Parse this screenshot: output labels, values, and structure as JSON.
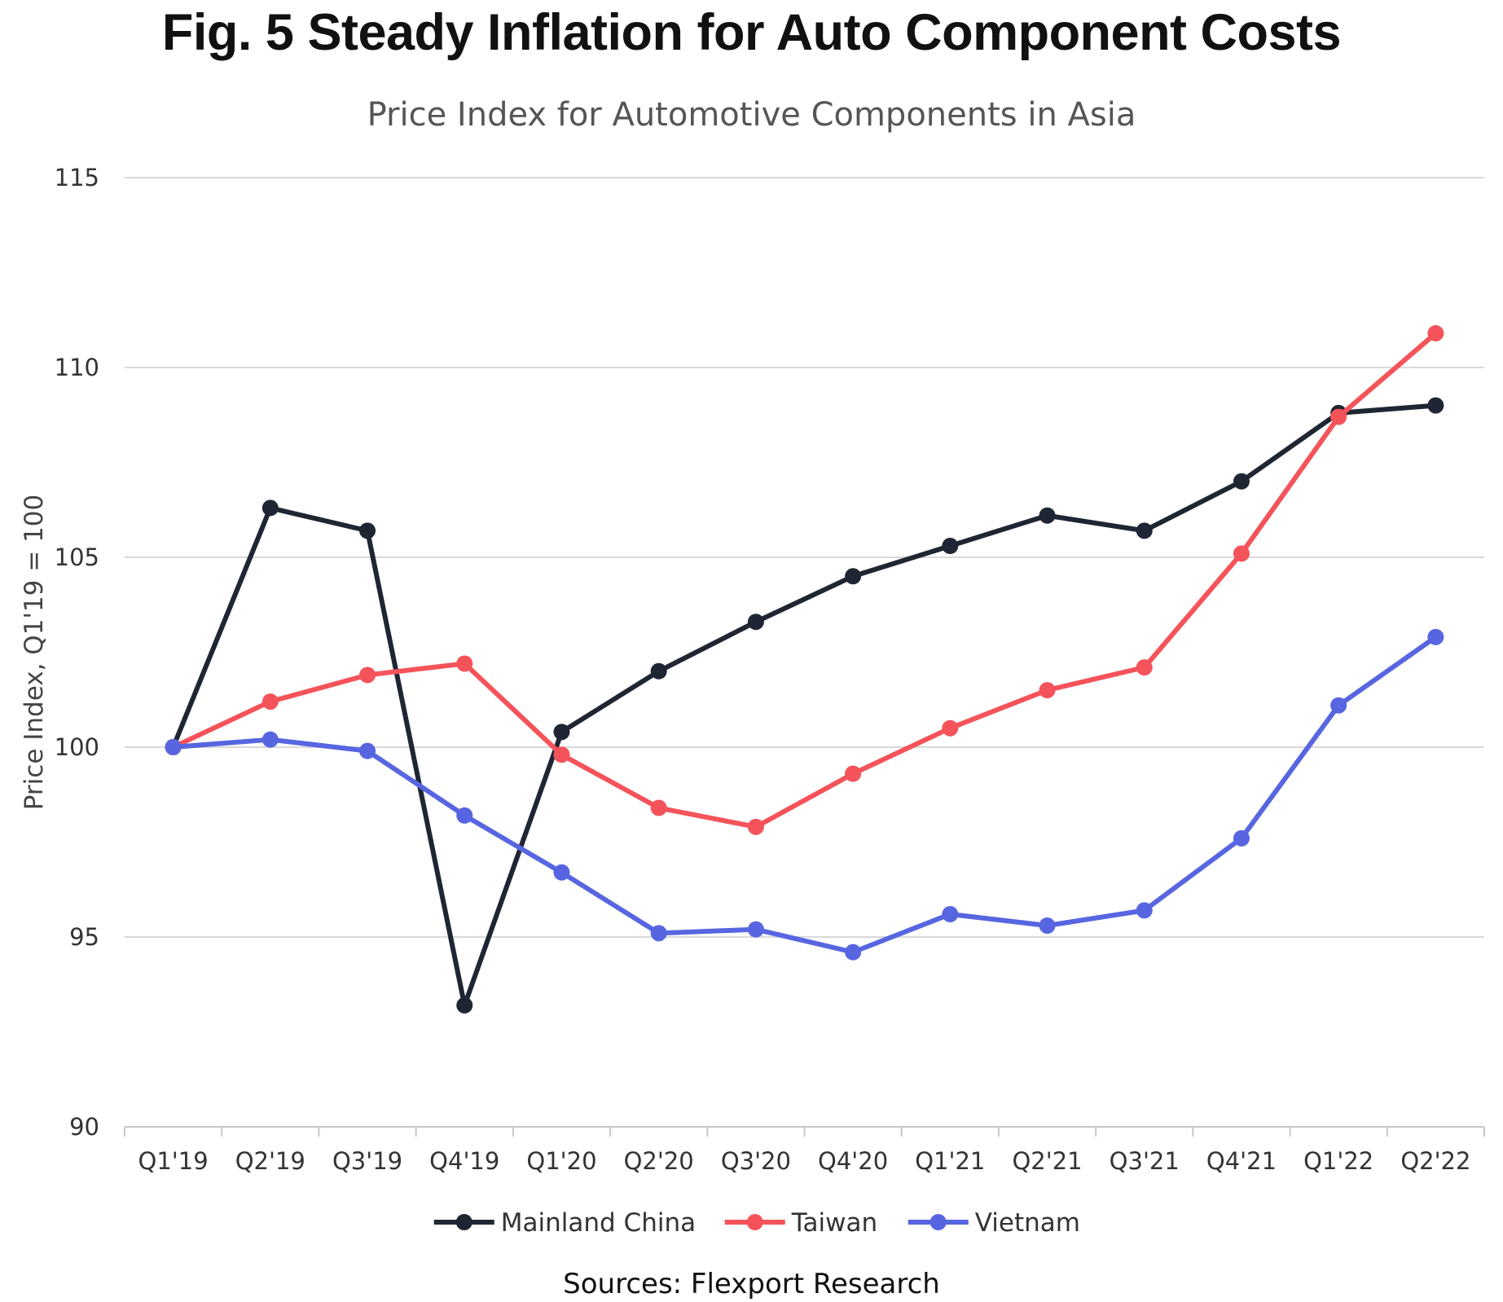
{
  "title": "Fig. 5 Steady Inflation for Auto Component Costs",
  "sources": "Sources: Flexport Research",
  "chart_data": {
    "type": "line",
    "title": "Price Index for Automotive Components in Asia",
    "xlabel": "",
    "ylabel": "Price Index, Q1'19 = 100",
    "ylim": [
      90,
      115
    ],
    "yticks": [
      90,
      95,
      100,
      105,
      110,
      115
    ],
    "grid": true,
    "legend_position": "bottom",
    "categories": [
      "Q1'19",
      "Q2'19",
      "Q3'19",
      "Q4'19",
      "Q1'20",
      "Q2'20",
      "Q3'20",
      "Q4'20",
      "Q1'21",
      "Q2'21",
      "Q3'21",
      "Q4'21",
      "Q1'22",
      "Q2'22"
    ],
    "series": [
      {
        "name": "Mainland China",
        "color": "#1f2633",
        "values": [
          100,
          106.3,
          105.7,
          93.2,
          100.4,
          102.0,
          103.3,
          104.5,
          105.3,
          106.1,
          105.7,
          107.0,
          108.8,
          109.0
        ]
      },
      {
        "name": "Taiwan",
        "color": "#f5535a",
        "values": [
          100,
          101.2,
          101.9,
          102.2,
          99.8,
          98.4,
          97.9,
          99.3,
          100.5,
          101.5,
          102.1,
          105.1,
          108.7,
          110.9
        ]
      },
      {
        "name": "Vietnam",
        "color": "#5766e0",
        "values": [
          100,
          100.2,
          99.9,
          98.2,
          96.7,
          95.1,
          95.2,
          94.6,
          95.6,
          95.3,
          95.7,
          97.6,
          101.1,
          102.9
        ]
      }
    ]
  }
}
